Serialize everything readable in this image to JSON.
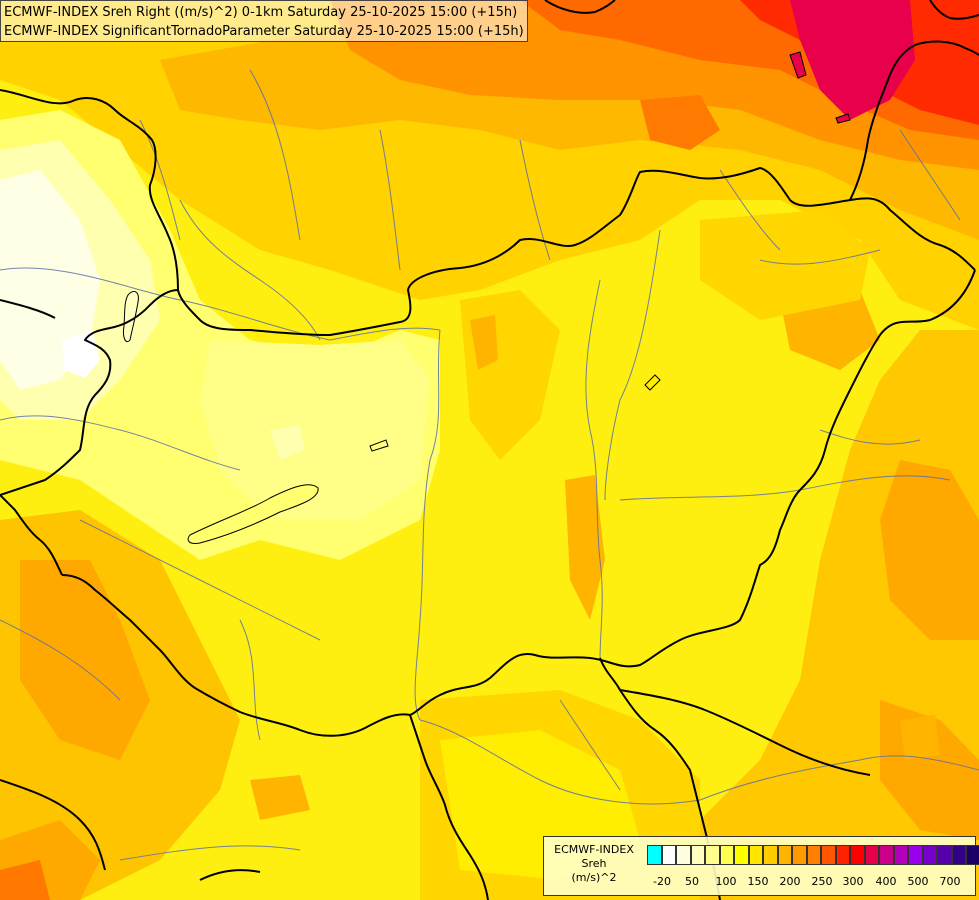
{
  "header": {
    "line1": "ECMWF-INDEX Sreh Right ((m/s)^2) 0-1km Saturday 25-10-2025 15:00 (+15h)",
    "line2": "ECMWF-INDEX SignificantTornadoParameter Saturday 25-10-2025 15:00 (+15h)"
  },
  "legend": {
    "title1": "ECMWF-INDEX",
    "title2": "Sreh",
    "title3": "(m/s)^2",
    "colors": [
      "#00ffff",
      "#ffffff",
      "#ffffe0",
      "#ffffc0",
      "#ffff90",
      "#ffff50",
      "#ffff00",
      "#ffe600",
      "#ffcc00",
      "#ffb400",
      "#ff9900",
      "#ff7f00",
      "#ff5500",
      "#ff2200",
      "#ff0000",
      "#e6004c",
      "#cc0088",
      "#b300bb",
      "#9900ee",
      "#7700cc",
      "#5500aa",
      "#330088",
      "#1a0066"
    ],
    "ticks": [
      "-20",
      "50",
      "100",
      "150",
      "200",
      "250",
      "300",
      "400",
      "500",
      "700"
    ]
  },
  "palette": {
    "deep_red": "#e8004a",
    "red": "#ff2200",
    "dark_orange": "#ff7200",
    "orange": "#ff9a00",
    "light_orange": "#ffc000",
    "gold": "#ffd800",
    "yellow": "#ffee00",
    "bright_yellow": "#ffff33",
    "pale_yellow": "#ffff80",
    "cream": "#ffffb8",
    "white": "#ffffff",
    "border": "#000000",
    "river": "#5a6ea8"
  }
}
